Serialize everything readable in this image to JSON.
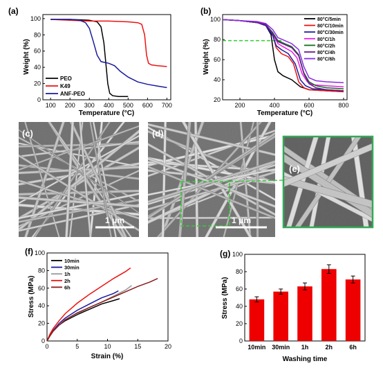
{
  "colors": {
    "black": "#000000",
    "red": "#ee1111",
    "blue": "#1a1a9e",
    "grey": "#999999",
    "darkred": "#8b1a1a",
    "magenta": "#e81ee8",
    "darkgreen": "#0f6e1a",
    "purple": "#6a1b8a",
    "violet": "#8a2be2",
    "green_dash": "#33cc33",
    "bar_red": "#ee0000",
    "sem_frame": "#33aa55"
  },
  "chart_data": [
    {
      "panel": "(a)",
      "type": "line",
      "xlabel": "Temperature (°C)",
      "ylabel": "Weight (%)",
      "xlim": [
        60,
        720
      ],
      "ylim": [
        0,
        105
      ],
      "xticks": [
        100,
        200,
        300,
        400,
        500,
        600,
        700
      ],
      "yticks": [
        0,
        20,
        40,
        60,
        80,
        100
      ],
      "legend_position": "bottom-left",
      "series": [
        {
          "name": "PEO",
          "color": "black",
          "x": [
            100,
            200,
            300,
            340,
            360,
            375,
            385,
            395,
            405,
            420,
            450,
            500
          ],
          "y": [
            99,
            99,
            98,
            96,
            90,
            70,
            45,
            20,
            8,
            5,
            4,
            4
          ]
        },
        {
          "name": "K49",
          "color": "red",
          "x": [
            100,
            200,
            300,
            400,
            500,
            550,
            570,
            585,
            595,
            605,
            620,
            650,
            700
          ],
          "y": [
            99,
            98,
            97,
            97,
            96,
            95,
            93,
            80,
            55,
            45,
            43,
            42,
            41
          ]
        },
        {
          "name": "ANF-PEO",
          "color": "blue",
          "x": [
            100,
            200,
            250,
            280,
            300,
            320,
            340,
            360,
            380,
            400,
            430,
            460,
            500,
            550,
            600,
            650,
            700
          ],
          "y": [
            99,
            99,
            98,
            95,
            88,
            72,
            55,
            47,
            46,
            45,
            42,
            35,
            28,
            22,
            19,
            17,
            15
          ]
        }
      ]
    },
    {
      "panel": "(b)",
      "type": "line",
      "xlabel": "Temperature (°C)",
      "ylabel": "Weight (%)",
      "xlim": [
        100,
        820
      ],
      "ylim": [
        20,
        105
      ],
      "xticks": [
        200,
        400,
        600,
        800
      ],
      "yticks": [
        20,
        40,
        60,
        80,
        100
      ],
      "reference_line_y": 79,
      "legend_position": "top-right",
      "series": [
        {
          "name": "80°C/5min",
          "color": "black",
          "x": [
            100,
            200,
            300,
            350,
            380,
            400,
            420,
            450,
            500,
            550,
            600,
            700,
            800
          ],
          "y": [
            100,
            99,
            97,
            94,
            85,
            60,
            48,
            44,
            40,
            33,
            30,
            29,
            28
          ]
        },
        {
          "name": "80°C/10min",
          "color": "red",
          "x": [
            100,
            200,
            300,
            350,
            390,
            410,
            440,
            480,
            510,
            540,
            570,
            600,
            700,
            800
          ],
          "y": [
            100,
            99,
            97,
            94,
            85,
            72,
            66,
            63,
            56,
            38,
            32,
            30,
            29,
            28
          ]
        },
        {
          "name": "80°C/30min",
          "color": "blue",
          "x": [
            100,
            200,
            300,
            350,
            390,
            410,
            440,
            480,
            520,
            550,
            580,
            620,
            700,
            800
          ],
          "y": [
            100,
            99,
            97,
            94,
            84,
            74,
            70,
            66,
            56,
            40,
            34,
            31,
            30,
            29
          ]
        },
        {
          "name": "80°C/1h",
          "color": "magenta",
          "x": [
            100,
            200,
            300,
            350,
            390,
            420,
            460,
            500,
            530,
            560,
            590,
            620,
            700,
            800
          ],
          "y": [
            100,
            99,
            97,
            95,
            86,
            76,
            72,
            68,
            62,
            46,
            38,
            35,
            34,
            33
          ]
        },
        {
          "name": "80°C/2h",
          "color": "darkgreen",
          "x": [
            100,
            200,
            300,
            350,
            390,
            420,
            460,
            500,
            540,
            570,
            600,
            640,
            700,
            800
          ],
          "y": [
            100,
            99,
            97,
            95,
            87,
            79,
            76,
            73,
            65,
            47,
            38,
            34,
            32,
            31
          ]
        },
        {
          "name": "80°C/4h",
          "color": "purple",
          "x": [
            100,
            200,
            300,
            350,
            390,
            420,
            460,
            500,
            540,
            570,
            600,
            640,
            700,
            800
          ],
          "y": [
            100,
            99,
            97,
            95,
            86,
            78,
            75,
            72,
            64,
            46,
            36,
            32,
            30,
            29
          ]
        },
        {
          "name": "80°C/6h",
          "color": "violet",
          "x": [
            100,
            200,
            300,
            350,
            390,
            420,
            460,
            500,
            540,
            570,
            600,
            640,
            700,
            800
          ],
          "y": [
            100,
            99,
            98,
            96,
            90,
            82,
            79,
            76,
            70,
            53,
            42,
            39,
            38,
            37
          ]
        }
      ]
    },
    {
      "panel": "(f)",
      "type": "line",
      "xlabel": "Strain (%)",
      "ylabel": "Stress (MPa)",
      "xlim": [
        0,
        20
      ],
      "ylim": [
        0,
        100
      ],
      "xticks": [
        0,
        5,
        10,
        15,
        20
      ],
      "yticks": [
        0,
        20,
        40,
        60,
        80,
        100
      ],
      "legend_position": "top-left",
      "series": [
        {
          "name": "10min",
          "color": "black",
          "x": [
            0,
            0.5,
            1,
            2,
            3,
            5,
            7,
            9,
            11,
            12
          ],
          "y": [
            0,
            6,
            11,
            18,
            23,
            30,
            36,
            42,
            46,
            48
          ]
        },
        {
          "name": "30min",
          "color": "blue",
          "x": [
            0,
            0.5,
            1,
            2,
            3,
            5,
            7,
            9,
            11,
            11.8
          ],
          "y": [
            0,
            7,
            12,
            20,
            26,
            35,
            42,
            49,
            54,
            57
          ]
        },
        {
          "name": "1h",
          "color": "grey",
          "x": [
            0,
            0.5,
            1,
            2,
            3,
            5,
            7,
            9,
            11,
            13,
            14
          ],
          "y": [
            0,
            6,
            11,
            18,
            24,
            31,
            38,
            44,
            51,
            58,
            63
          ]
        },
        {
          "name": "2h",
          "color": "red",
          "x": [
            0,
            0.5,
            1,
            2,
            3,
            5,
            7,
            9,
            11,
            13,
            13.8
          ],
          "y": [
            0,
            8,
            14,
            23,
            31,
            43,
            53,
            62,
            71,
            79,
            83
          ]
        },
        {
          "name": "6h",
          "color": "darkred",
          "x": [
            0,
            0.5,
            1,
            2,
            3,
            5,
            7,
            9,
            11,
            13,
            15,
            17,
            18.3
          ],
          "y": [
            0,
            6,
            11,
            18,
            24,
            32,
            38,
            44,
            50,
            56,
            62,
            67,
            71
          ]
        }
      ]
    },
    {
      "panel": "(g)",
      "type": "bar",
      "xlabel": "Washing time",
      "ylabel": "Stress (MPa)",
      "ylim": [
        0,
        100
      ],
      "yticks": [
        0,
        20,
        40,
        60,
        80,
        100
      ],
      "categories": [
        "10min",
        "30min",
        "1h",
        "2h",
        "6h"
      ],
      "values": [
        48,
        57,
        63,
        83,
        71
      ],
      "errors": [
        3,
        3,
        4,
        5,
        4
      ],
      "color": "bar_red"
    }
  ],
  "images": [
    {
      "panel": "(c)",
      "scale_bar": "1 μm"
    },
    {
      "panel": "(d)",
      "scale_bar": "1 μm"
    },
    {
      "panel": "(e)"
    }
  ]
}
